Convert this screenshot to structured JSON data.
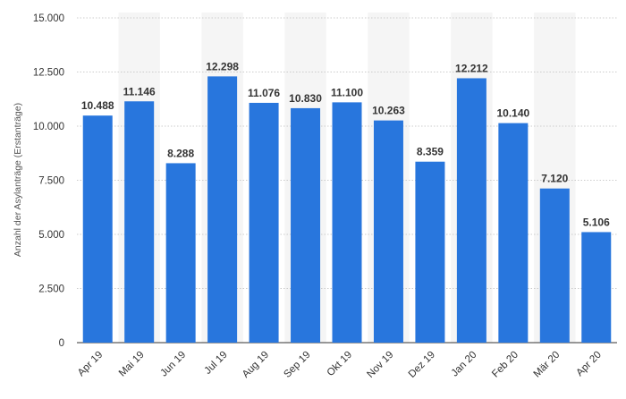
{
  "chart_data": {
    "type": "bar",
    "categories": [
      "Apr 19",
      "Mai 19",
      "Jun 19",
      "Jul 19",
      "Aug 19",
      "Sep 19",
      "Okt 19",
      "Nov 19",
      "Dez 19",
      "Jan 20",
      "Feb 20",
      "Mär 20",
      "Apr 20"
    ],
    "values": [
      10488,
      11146,
      8288,
      12298,
      11076,
      10830,
      11100,
      10263,
      8359,
      12212,
      10140,
      7120,
      5106
    ],
    "value_labels": [
      "10.488",
      "11.146",
      "8.288",
      "12.298",
      "11.076",
      "10.830",
      "11.100",
      "10.263",
      "8.359",
      "12.212",
      "10.140",
      "7.120",
      "5.106"
    ],
    "ylabel": "Anzahl der Asylanträge (Erstanträge)",
    "ylim": [
      0,
      15000
    ],
    "yticks": [
      0,
      2500,
      5000,
      7500,
      10000,
      12500,
      15000
    ],
    "ytick_labels": [
      "0",
      "2.500",
      "5.000",
      "7.500",
      "10.000",
      "12.500",
      "15.000"
    ],
    "grid": true,
    "colors": {
      "bar": "#2876dd",
      "band": "#f5f5f5",
      "grid": "#cccccc"
    }
  }
}
